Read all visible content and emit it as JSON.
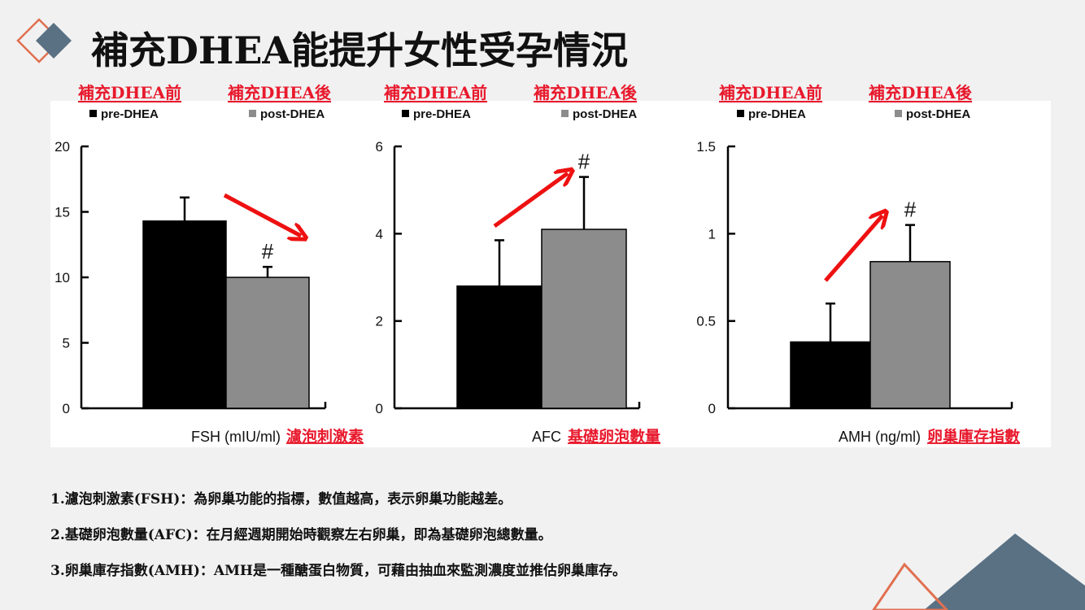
{
  "title": "補充DHEA能提升女性受孕情況",
  "colors": {
    "pre": "#000000",
    "post": "#8c8c8c",
    "arrow": "#ee1111",
    "accent": "#e8192c",
    "slate": "#5a7184",
    "orange": "#e07050"
  },
  "legend": {
    "pre_cn": "補充DHEA前",
    "post_cn": "補充DHEA後",
    "pre": "pre-DHEA",
    "post": "post-DHEA"
  },
  "chart_data": [
    {
      "type": "bar",
      "categories": [
        "pre-DHEA",
        "post-DHEA"
      ],
      "values": [
        14.3,
        10.0
      ],
      "errors": [
        1.8,
        0.8
      ],
      "ylim": [
        0,
        20
      ],
      "yticks": [
        "0",
        "5",
        "10",
        "15",
        "20"
      ],
      "xlabel": "FSH (mIU/ml)",
      "xlabel_cn": "濾泡刺激素",
      "annotation": "#",
      "trend": "down"
    },
    {
      "type": "bar",
      "categories": [
        "pre-DHEA",
        "post-DHEA"
      ],
      "values": [
        2.8,
        4.1
      ],
      "errors": [
        1.05,
        1.2
      ],
      "ylim": [
        0,
        6
      ],
      "yticks": [
        "0",
        "2",
        "4",
        "6"
      ],
      "xlabel": "AFC",
      "xlabel_cn": "基礎卵泡數量",
      "annotation": "#",
      "trend": "up"
    },
    {
      "type": "bar",
      "categories": [
        "pre-DHEA",
        "post-DHEA"
      ],
      "values": [
        0.38,
        0.84
      ],
      "errors": [
        0.22,
        0.21
      ],
      "ylim": [
        0,
        1.5
      ],
      "yticks": [
        "0",
        "0.5",
        "1",
        "1.5"
      ],
      "xlabel": "AMH (ng/ml)",
      "xlabel_cn": "卵巢庫存指數",
      "annotation": "#",
      "trend": "up"
    }
  ],
  "notes": [
    "1.濾泡刺激素(FSH)：為卵巢功能的指標，數值越高，表示卵巢功能越差。",
    "2.基礎卵泡數量(AFC)：在月經週期開始時觀察左右卵巢，即為基礎卵泡總數量。",
    "3.卵巢庫存指數(AMH)：AMH是一種醣蛋白物質，可藉由抽血來監測濃度並推估卵巢庫存。"
  ]
}
